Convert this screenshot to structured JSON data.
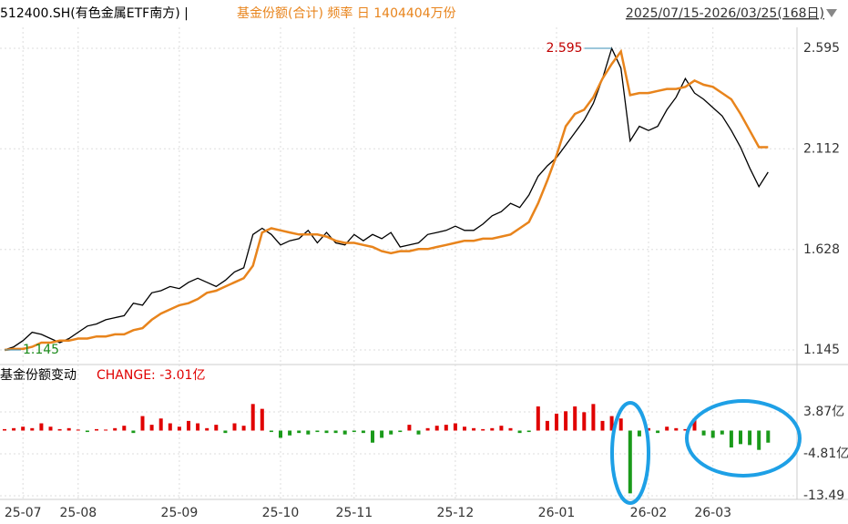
{
  "chart_data": [
    {
      "type": "line",
      "title": "512400.SH(有色金属ETF南方) |",
      "subtitle": "基金份额(合计) 频率 日 1404404万份",
      "date_range": "2025/07/15-2026/03/25(168日)",
      "annotations": [
        "2.595",
        "1.145"
      ],
      "ylim": [
        1.075,
        2.696
      ],
      "yticks": [
        2.595,
        2.112,
        1.628,
        1.145
      ],
      "grid": true,
      "series": [
        {
          "color": "#000000",
          "values": [
            1.145,
            1.16,
            1.19,
            1.23,
            1.22,
            1.2,
            1.18,
            1.2,
            1.23,
            1.26,
            1.27,
            1.29,
            1.3,
            1.31,
            1.37,
            1.36,
            1.42,
            1.43,
            1.45,
            1.44,
            1.47,
            1.49,
            1.47,
            1.45,
            1.48,
            1.52,
            1.54,
            1.7,
            1.73,
            1.7,
            1.65,
            1.67,
            1.68,
            1.72,
            1.66,
            1.71,
            1.66,
            1.65,
            1.7,
            1.67,
            1.7,
            1.68,
            1.71,
            1.64,
            1.65,
            1.66,
            1.7,
            1.71,
            1.72,
            1.74,
            1.72,
            1.72,
            1.75,
            1.79,
            1.81,
            1.85,
            1.83,
            1.89,
            1.98,
            2.03,
            2.07,
            2.13,
            2.19,
            2.25,
            2.33,
            2.45,
            2.595,
            2.5,
            2.15,
            2.22,
            2.2,
            2.22,
            2.3,
            2.36,
            2.45,
            2.38,
            2.35,
            2.31,
            2.27,
            2.2,
            2.12,
            2.02,
            1.93,
            2.0
          ]
        },
        {
          "color": "#e8841c",
          "values": [
            1.145,
            1.15,
            1.15,
            1.16,
            1.18,
            1.18,
            1.19,
            1.19,
            1.2,
            1.2,
            1.21,
            1.21,
            1.22,
            1.22,
            1.24,
            1.25,
            1.29,
            1.32,
            1.34,
            1.36,
            1.37,
            1.39,
            1.42,
            1.43,
            1.45,
            1.47,
            1.49,
            1.55,
            1.71,
            1.73,
            1.72,
            1.71,
            1.7,
            1.7,
            1.7,
            1.69,
            1.67,
            1.66,
            1.66,
            1.65,
            1.64,
            1.62,
            1.61,
            1.62,
            1.62,
            1.63,
            1.63,
            1.64,
            1.65,
            1.66,
            1.67,
            1.67,
            1.68,
            1.68,
            1.69,
            1.7,
            1.73,
            1.76,
            1.85,
            1.96,
            2.08,
            2.22,
            2.28,
            2.3,
            2.36,
            2.45,
            2.52,
            2.58,
            2.37,
            2.38,
            2.38,
            2.39,
            2.4,
            2.4,
            2.41,
            2.44,
            2.42,
            2.41,
            2.38,
            2.35,
            2.28,
            2.2,
            2.12,
            2.12
          ]
        }
      ]
    },
    {
      "type": "bar",
      "title": "基金份额变动",
      "subtitle": "CHANGE: -3.01亿",
      "ylim": [
        -14.25,
        8.96
      ],
      "yticks": [
        {
          "value": 3.87,
          "label": "3.87亿"
        },
        {
          "value": -4.81,
          "label": "-4.81亿"
        },
        {
          "value": -13.49,
          "label": "-13.49"
        }
      ],
      "grid": true,
      "positive_color": "#e00000",
      "negative_color": "#1a9a1a",
      "categories": [
        null,
        null,
        "25-07",
        null,
        null,
        null,
        null,
        null,
        "25-08",
        null,
        null,
        null,
        null,
        null,
        null,
        null,
        null,
        null,
        null,
        "25-09",
        null,
        null,
        null,
        null,
        null,
        null,
        null,
        null,
        null,
        null,
        "25-10",
        null,
        null,
        null,
        null,
        null,
        null,
        null,
        "25-11",
        null,
        null,
        null,
        null,
        null,
        null,
        null,
        null,
        null,
        null,
        "25-12",
        null,
        null,
        null,
        null,
        null,
        null,
        null,
        null,
        null,
        null,
        "26-01",
        null,
        null,
        null,
        null,
        null,
        null,
        null,
        null,
        null,
        "26-02",
        null,
        null,
        null,
        null,
        null,
        null,
        "26-03",
        null,
        null,
        null,
        null,
        null,
        null
      ],
      "values": [
        0.3,
        0.5,
        0.8,
        0.5,
        1.5,
        0.8,
        0.3,
        0.5,
        0.2,
        -0.3,
        0.3,
        0.2,
        0.5,
        1.0,
        -0.5,
        3.0,
        1.2,
        2.5,
        1.5,
        0.8,
        2.0,
        1.5,
        0.5,
        1.2,
        -0.5,
        1.5,
        1.0,
        5.5,
        4.5,
        -0.3,
        -1.5,
        -1.0,
        -0.5,
        -0.8,
        -0.3,
        -0.5,
        -0.5,
        -0.8,
        -0.3,
        -0.5,
        -2.5,
        -1.5,
        -0.8,
        -0.3,
        1.2,
        -0.8,
        0.5,
        1.0,
        1.2,
        1.5,
        0.8,
        0.5,
        0.3,
        0.5,
        1.0,
        0.5,
        -0.5,
        -0.3,
        5.0,
        2.0,
        3.5,
        4.0,
        5.0,
        3.8,
        5.5,
        2.0,
        3.0,
        2.5,
        -13.0,
        -1.2,
        0.5,
        -0.5,
        0.8,
        0.5,
        0.3,
        2.5,
        -1.0,
        -1.5,
        -0.8,
        -3.5,
        -2.8,
        -3.0,
        -4.0,
        -2.5
      ]
    }
  ]
}
